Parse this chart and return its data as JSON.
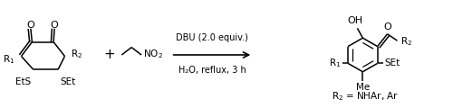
{
  "background_color": "#ffffff",
  "line_color": "#000000",
  "reagent_line1": "DBU (2.0 equiv.)",
  "reagent_line2": "H₂O, reflux, 3 h",
  "r2_label": "R₂ = NHAr, Ar",
  "fig_width": 5.0,
  "fig_height": 1.2,
  "dpi": 100
}
